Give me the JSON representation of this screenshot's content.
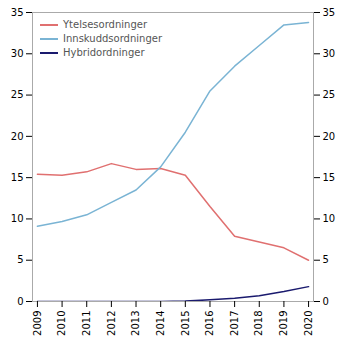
{
  "chart_data": {
    "type": "line",
    "x": [
      2009,
      2010,
      2011,
      2012,
      2013,
      2014,
      2015,
      2016,
      2017,
      2018,
      2019,
      2020
    ],
    "series": [
      {
        "name": "Ytelsesordninger",
        "color": "#e07070",
        "values": [
          15.4,
          15.3,
          15.7,
          16.7,
          16.0,
          16.1,
          15.3,
          11.5,
          7.9,
          7.2,
          6.5,
          5.0
        ]
      },
      {
        "name": "Innskuddsordninger",
        "color": "#7ab4d4",
        "values": [
          9.1,
          9.7,
          10.5,
          12.0,
          13.5,
          16.3,
          20.5,
          25.5,
          28.5,
          31.0,
          33.5,
          33.8
        ]
      },
      {
        "name": "Hybridordninger",
        "color": "#1a1a6e",
        "values": [
          0.0,
          0.0,
          0.0,
          0.0,
          0.0,
          0.0,
          0.05,
          0.2,
          0.4,
          0.7,
          1.2,
          1.8
        ]
      }
    ],
    "xlim": [
      2008.8,
      2020.2
    ],
    "xticks": [
      2009,
      2010,
      2011,
      2012,
      2013,
      2014,
      2015,
      2016,
      2017,
      2018,
      2019,
      2020
    ],
    "ylim": [
      0,
      35
    ],
    "yticks": [
      0,
      5,
      10,
      15,
      20,
      25,
      30,
      35
    ],
    "grid": false,
    "legend": "upper left"
  }
}
